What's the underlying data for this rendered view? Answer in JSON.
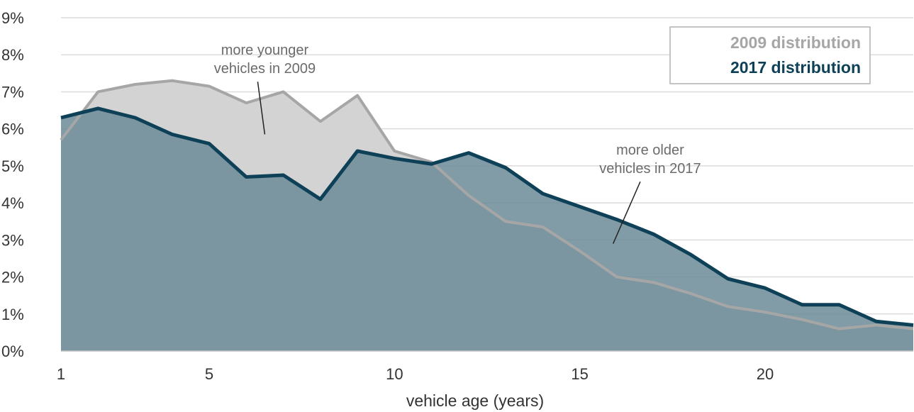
{
  "chart_data": {
    "type": "area",
    "xlabel": "vehicle age (years)",
    "ylabel": "",
    "xlim": [
      1,
      24
    ],
    "ylim": [
      0,
      9
    ],
    "x_ticks": [
      1,
      5,
      10,
      15,
      20
    ],
    "y_ticks": [
      0,
      1,
      2,
      3,
      4,
      5,
      6,
      7,
      8,
      9
    ],
    "y_tick_format": "percent",
    "grid": "horizontal",
    "legend_position": "top-right",
    "x": [
      1,
      2,
      3,
      4,
      5,
      6,
      7,
      8,
      9,
      10,
      11,
      12,
      13,
      14,
      15,
      16,
      17,
      18,
      19,
      20,
      21,
      22,
      23,
      24
    ],
    "series": [
      {
        "name": "2009 distribution",
        "color": "#a6a6a6",
        "fill": "#d3d3d3",
        "values": [
          5.7,
          7.0,
          7.2,
          7.3,
          7.15,
          6.7,
          7.0,
          6.2,
          6.9,
          5.4,
          5.1,
          4.2,
          3.5,
          3.35,
          2.7,
          2.0,
          1.85,
          1.55,
          1.2,
          1.05,
          0.85,
          0.6,
          0.7,
          0.6
        ]
      },
      {
        "name": "2017 distribution",
        "color": "#0e4158",
        "fill": "#6b8b96",
        "values": [
          6.3,
          6.55,
          6.3,
          5.85,
          5.6,
          4.7,
          4.75,
          4.1,
          5.4,
          5.2,
          5.05,
          5.35,
          4.95,
          4.25,
          3.9,
          3.55,
          3.15,
          2.6,
          1.95,
          1.7,
          1.25,
          1.25,
          0.8,
          0.7
        ]
      }
    ],
    "annotations": [
      {
        "lines": [
          "more younger",
          "vehicles in 2009"
        ],
        "x": 6.5,
        "y": 8.0,
        "arrow_to": [
          6.5,
          5.85
        ]
      },
      {
        "lines": [
          "more older",
          "vehicles in 2017"
        ],
        "x": 16.9,
        "y": 5.3,
        "arrow_to": [
          15.9,
          2.9
        ]
      }
    ]
  }
}
